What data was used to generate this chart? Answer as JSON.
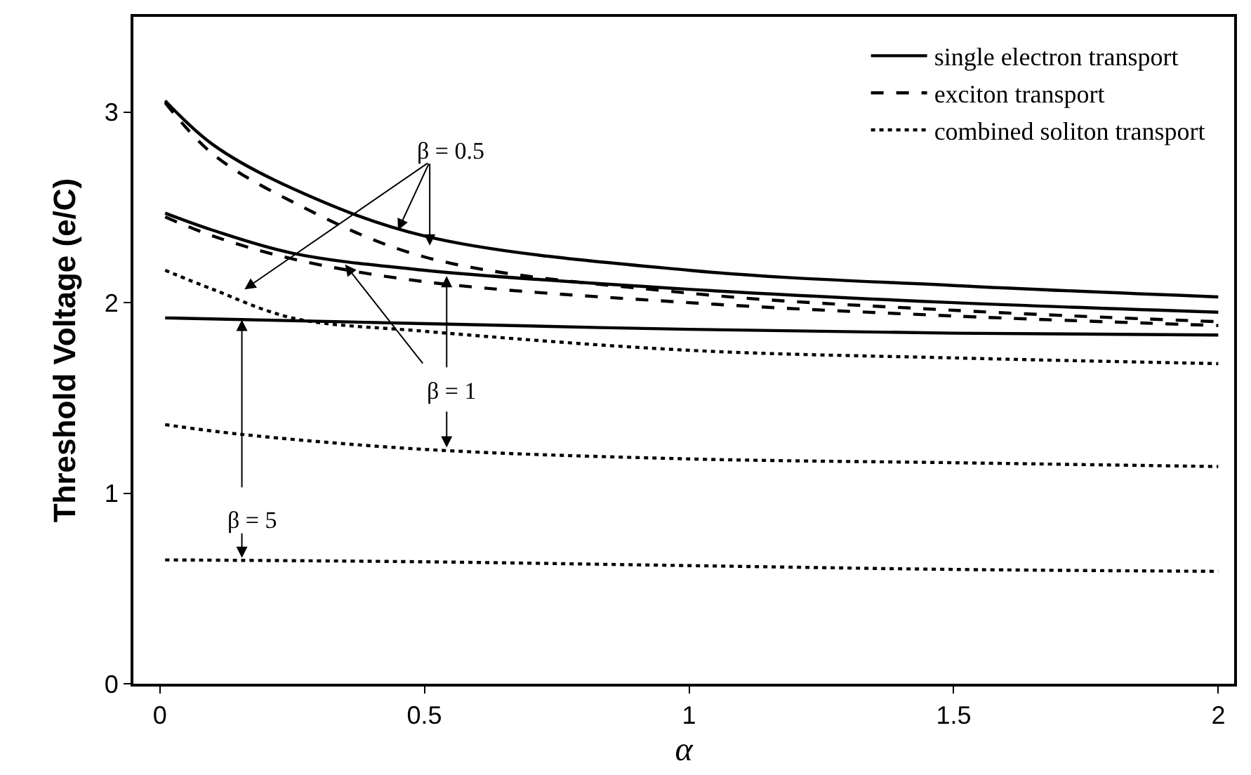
{
  "chart_data": {
    "type": "line",
    "xlabel": "α",
    "ylabel": "Threshold Voltage (e/C)",
    "xlim": [
      -0.05,
      2.03
    ],
    "ylim": [
      0,
      3.5
    ],
    "xticks": [
      0,
      0.5,
      1,
      1.5,
      2
    ],
    "yticks": [
      0,
      1,
      2,
      3
    ],
    "grid": false,
    "legend": "top right",
    "marker": "none",
    "series": [
      {
        "name": "single electron transport",
        "color": "#000000",
        "line_style": "solid",
        "x": [
          0.01,
          0.1,
          0.25,
          0.5,
          1,
          1.5,
          2
        ],
        "values": [
          3.06,
          2.83,
          2.6,
          2.35,
          2.17,
          2.09,
          2.03
        ]
      },
      {
        "color": "#000000",
        "line_style": "solid",
        "x": [
          0.01,
          0.1,
          0.25,
          0.5,
          1,
          1.5,
          2
        ],
        "values": [
          2.47,
          2.38,
          2.26,
          2.17,
          2.07,
          2.0,
          1.95
        ]
      },
      {
        "color": "#000000",
        "line_style": "solid",
        "x": [
          0.01,
          0.5,
          1,
          1.5,
          2
        ],
        "values": [
          1.92,
          1.89,
          1.86,
          1.84,
          1.83
        ]
      },
      {
        "name": "exciton transport",
        "color": "#000000",
        "line_style": "dashed",
        "x": [
          0.01,
          0.1,
          0.25,
          0.5,
          1,
          1.5,
          2
        ],
        "values": [
          3.05,
          2.78,
          2.53,
          2.24,
          2.05,
          1.96,
          1.9
        ]
      },
      {
        "color": "#000000",
        "line_style": "dashed",
        "x": [
          0.01,
          0.1,
          0.25,
          0.5,
          1,
          1.5,
          2
        ],
        "values": [
          2.45,
          2.35,
          2.23,
          2.11,
          2.0,
          1.93,
          1.88
        ]
      },
      {
        "name": "combined soliton transport",
        "color": "#000000",
        "line_style": "dotted",
        "x": [
          0.01,
          0.1,
          0.25,
          0.5,
          1,
          1.5,
          2
        ],
        "values": [
          2.17,
          2.07,
          1.92,
          1.85,
          1.75,
          1.71,
          1.68
        ]
      },
      {
        "color": "#000000",
        "line_style": "dotted",
        "x": [
          0.01,
          0.15,
          0.5,
          1,
          1.5,
          2
        ],
        "values": [
          1.36,
          1.31,
          1.23,
          1.18,
          1.16,
          1.14
        ]
      },
      {
        "color": "#000000",
        "line_style": "dotted",
        "x": [
          0.01,
          0.5,
          1,
          1.5,
          2
        ],
        "values": [
          0.65,
          0.64,
          0.62,
          0.6,
          0.59
        ]
      }
    ],
    "annotations": [
      {
        "text": "β = 0.5",
        "x": 0.45,
        "y": 2.38
      },
      {
        "text": "β = 1",
        "x": 0.35,
        "y": 2.2
      },
      {
        "text": "β = 5",
        "x": 0.155,
        "y": 1.91
      }
    ]
  }
}
